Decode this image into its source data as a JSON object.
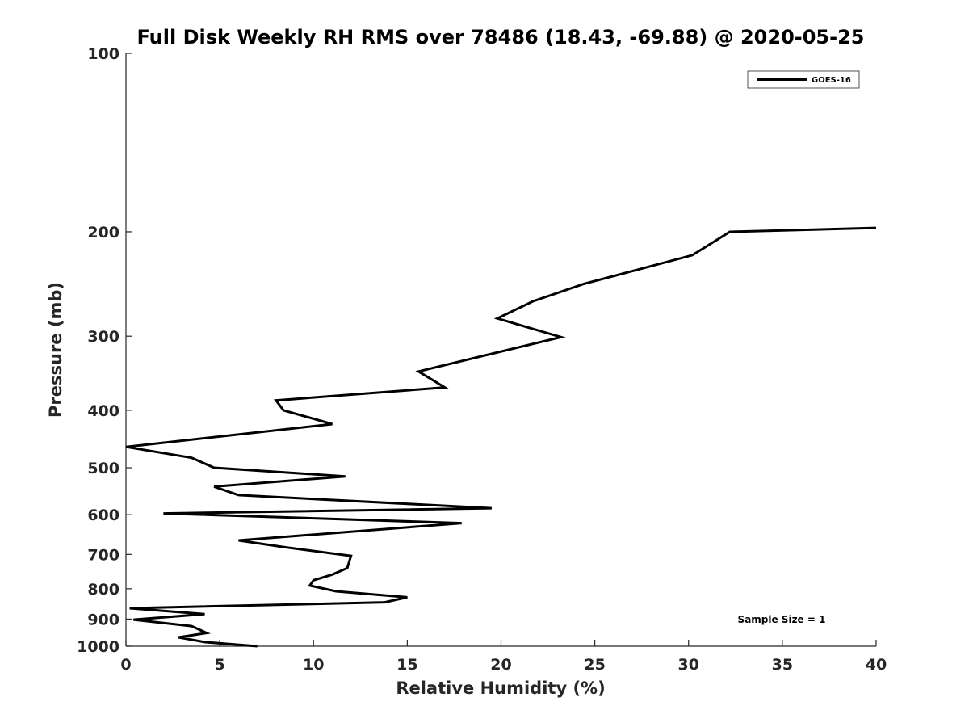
{
  "chart_data": {
    "type": "line",
    "title": "Full Disk Weekly RH RMS over 78486 (18.43, -69.88) @ 2020-05-25",
    "xlabel": "Relative Humidity (%)",
    "ylabel": "Pressure (mb)",
    "xlim": [
      0,
      40
    ],
    "ylim": [
      1000,
      100
    ],
    "y_scale": "log",
    "y_reversed": true,
    "x_ticks": [
      0,
      5,
      10,
      15,
      20,
      25,
      30,
      35,
      40
    ],
    "y_ticks": [
      100,
      200,
      300,
      400,
      500,
      600,
      700,
      800,
      900,
      1000
    ],
    "grid": false,
    "legend_position": "top-right",
    "series": [
      {
        "name": "GOES-16",
        "color": "#000000",
        "points": [
          [
            7.0,
            1000
          ],
          [
            4.2,
            984
          ],
          [
            2.8,
            966
          ],
          [
            4.3,
            950
          ],
          [
            3.5,
            925
          ],
          [
            0.4,
            902
          ],
          [
            4.2,
            883
          ],
          [
            0.2,
            863
          ],
          [
            13.8,
            843
          ],
          [
            15.0,
            827
          ],
          [
            11.2,
            808
          ],
          [
            9.8,
            790
          ],
          [
            10.0,
            774
          ],
          [
            11.0,
            757
          ],
          [
            11.8,
            738
          ],
          [
            12.0,
            704
          ],
          [
            8.5,
            681
          ],
          [
            6.0,
            663
          ],
          [
            17.9,
            620
          ],
          [
            2.0,
            597
          ],
          [
            19.5,
            585
          ],
          [
            6.0,
            556
          ],
          [
            4.7,
            538
          ],
          [
            11.7,
            517
          ],
          [
            4.7,
            500
          ],
          [
            3.5,
            481
          ],
          [
            0.0,
            461
          ],
          [
            11.0,
            422
          ],
          [
            8.4,
            400
          ],
          [
            8.0,
            385
          ],
          [
            17.0,
            366
          ],
          [
            15.6,
            344
          ],
          [
            23.2,
            301
          ],
          [
            19.8,
            280
          ],
          [
            21.7,
            262
          ],
          [
            24.4,
            245
          ],
          [
            30.2,
            219
          ],
          [
            32.2,
            200
          ],
          [
            40.0,
            197
          ]
        ]
      }
    ],
    "legend": [
      "GOES-16"
    ],
    "annotation": "Sample Size = 1"
  }
}
